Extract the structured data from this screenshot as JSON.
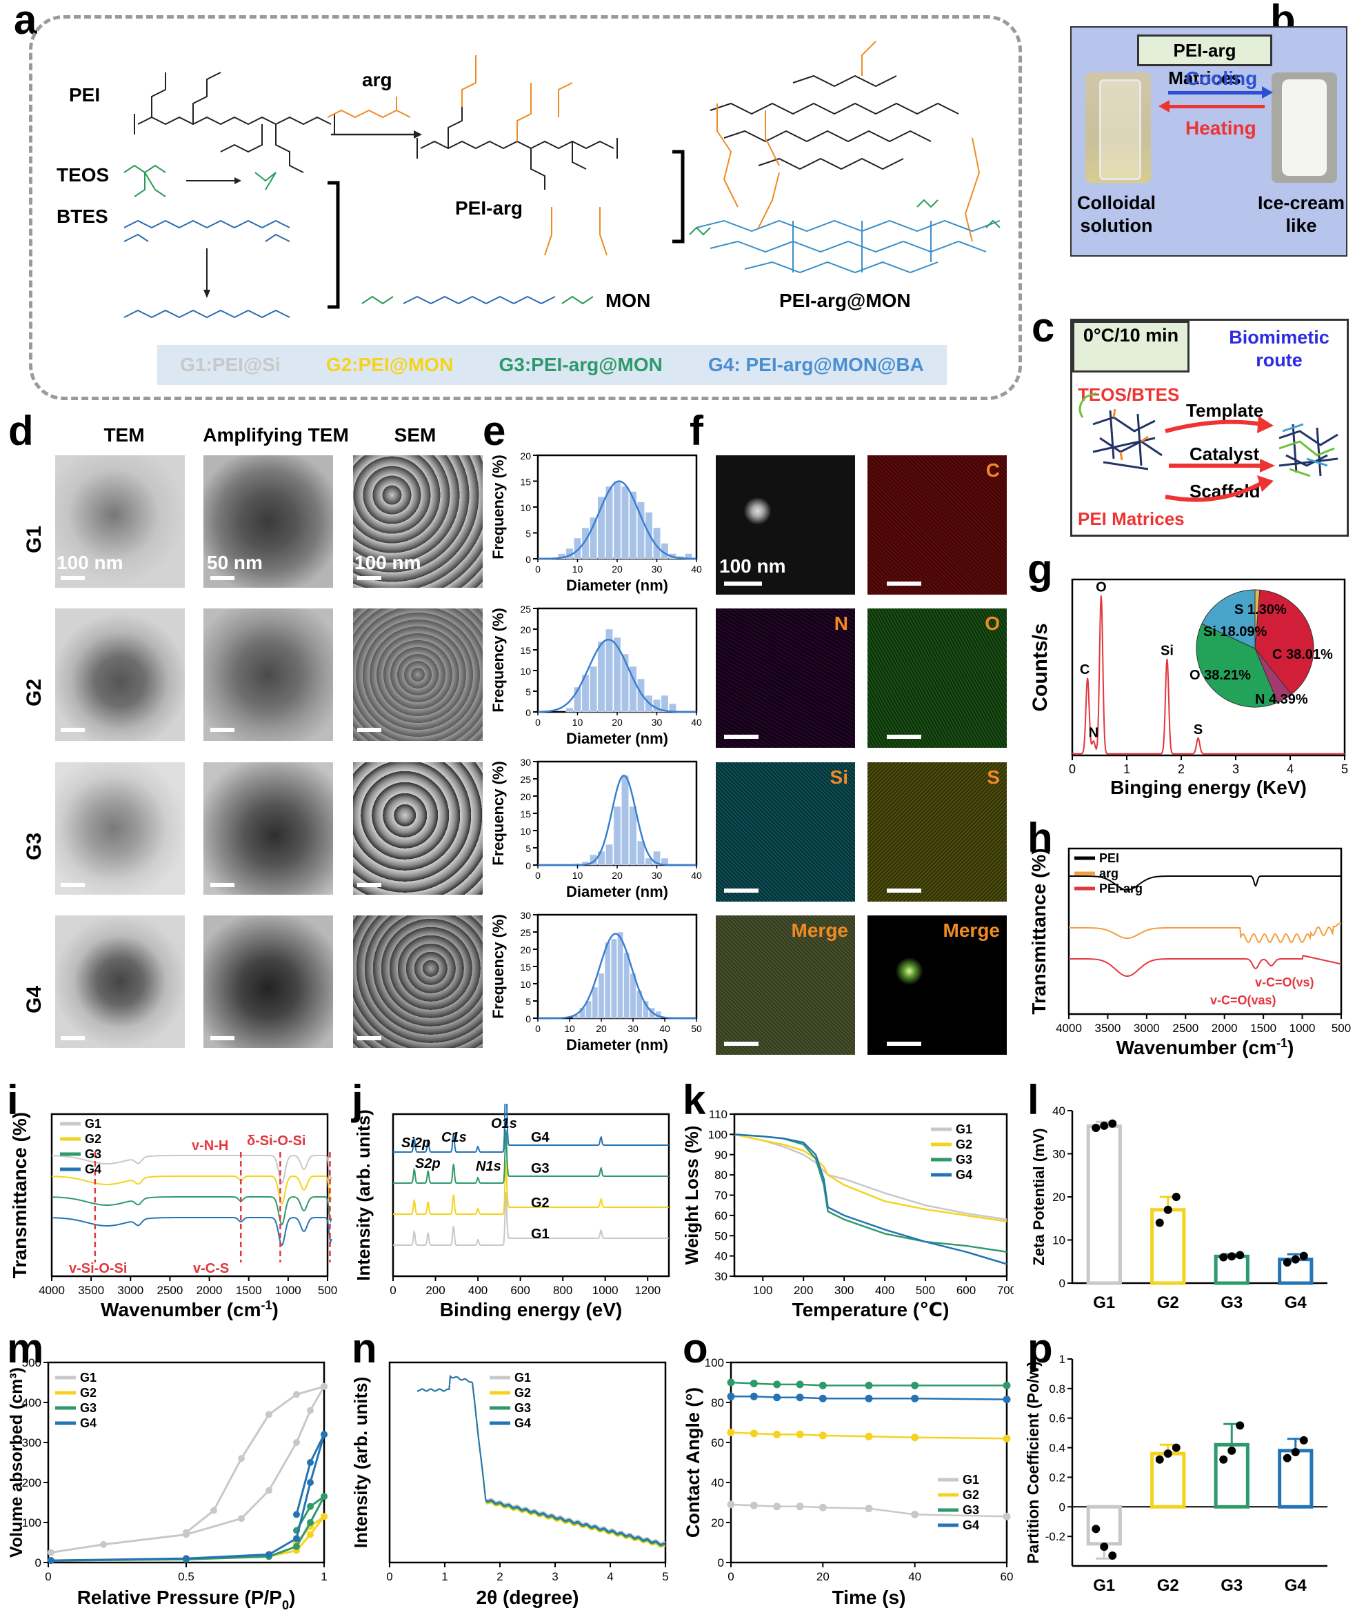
{
  "panels": {
    "a": "a",
    "b": "b",
    "c": "c",
    "d": "d",
    "e": "e",
    "f": "f",
    "g": "g",
    "h": "h",
    "i": "i",
    "j": "j",
    "k": "k",
    "l": "l",
    "m": "m",
    "n": "n",
    "o": "o",
    "p": "p"
  },
  "scheme_a": {
    "pei": "PEI",
    "arg": "arg",
    "teos": "TEOS",
    "btes": "BTES",
    "pei_arg": "PEI-arg",
    "mon": "MON",
    "pei_arg_mon": "PEI-arg@MON",
    "legend": [
      {
        "text": "G1:PEI@Si",
        "color": "#c8c8c8"
      },
      {
        "text": "G2:PEI@MON",
        "color": "#f5d31c"
      },
      {
        "text": "G3:PEI-arg@MON",
        "color": "#2e9a6b"
      },
      {
        "text": "G4: PEI-arg@MON@BA",
        "color": "#4a8fd1"
      }
    ]
  },
  "panel_b": {
    "title": "PEI-arg Matrices",
    "cooling": "Cooling",
    "heating": "Heating",
    "left_caption": "Colloidal solution",
    "right_caption": "Ice-cream like"
  },
  "panel_c": {
    "box": "0°C/10 min",
    "route": "Biomimetic route",
    "teos_btes": "TEOS/BTES",
    "template": "Template",
    "catalyst": "Catalyst",
    "scaffold": "Scaffold",
    "pei_matrices": "PEI Matrices"
  },
  "panel_d": {
    "col_tem": "TEM",
    "col_amp": "Amplifying TEM",
    "col_sem": "SEM",
    "rows": [
      "G1",
      "G2",
      "G3",
      "G4"
    ],
    "sb_tem": "100 nm",
    "sb_amp": "50 nm",
    "sb_sem": "100 nm"
  },
  "panel_e": {
    "ylabel": "Frequency (%)",
    "xlabel": "Diameter (nm)",
    "xticks": [
      "0",
      "10",
      "20",
      "30",
      "40"
    ]
  },
  "panel_f": {
    "labels": [
      "C",
      "N",
      "O",
      "Si",
      "S",
      "Merge",
      "Merge"
    ],
    "sb": "100 nm"
  },
  "chart_data": [
    {
      "id": "e-G1",
      "type": "bar",
      "xlabel": "Diameter (nm)",
      "ylabel": "Frequency (%)",
      "gaussian_mean": 20.5,
      "gaussian_peak": 15,
      "ylim": [
        0,
        20
      ],
      "yticks": [
        0,
        5,
        10,
        15,
        20
      ],
      "xlim": [
        0,
        40
      ],
      "bins": [
        6,
        8,
        10,
        12,
        14,
        16,
        18,
        20,
        22,
        24,
        26,
        28,
        30,
        32,
        34,
        36,
        38
      ],
      "values": [
        1,
        2,
        4,
        6,
        8,
        12,
        14,
        15,
        14,
        13,
        11,
        9,
        6,
        3,
        1,
        0.5,
        1
      ]
    },
    {
      "id": "e-G2",
      "type": "bar",
      "xlabel": "Diameter (nm)",
      "ylabel": "Frequency (%)",
      "gaussian_mean": 17.8,
      "gaussian_peak": 17.5,
      "ylim": [
        0,
        25
      ],
      "yticks": [
        0,
        5,
        10,
        15,
        20,
        25
      ],
      "xlim": [
        0,
        40
      ],
      "bins": [
        8,
        10,
        12,
        14,
        16,
        18,
        20,
        22,
        24,
        26,
        28,
        30,
        32,
        34
      ],
      "values": [
        1,
        6,
        9,
        11,
        17,
        20,
        18,
        14,
        11,
        8,
        4,
        3,
        4,
        2
      ]
    },
    {
      "id": "e-G3",
      "type": "bar",
      "xlabel": "Diameter (nm)",
      "ylabel": "Frequency (%)",
      "gaussian_mean": 21.7,
      "gaussian_peak": 26,
      "ylim": [
        0,
        30
      ],
      "yticks": [
        0,
        5,
        10,
        15,
        20,
        25,
        30
      ],
      "xlim": [
        0,
        40
      ],
      "bins": [
        10,
        12,
        14,
        16,
        18,
        20,
        22,
        24,
        26,
        28,
        30,
        32
      ],
      "values": [
        0.5,
        1,
        3,
        4,
        6,
        17,
        26,
        17,
        7,
        2,
        4,
        2
      ]
    },
    {
      "id": "e-G4",
      "type": "bar",
      "xlabel": "Diameter (nm)",
      "ylabel": "Frequency (%)",
      "gaussian_mean": 24.5,
      "gaussian_peak": 24.5,
      "ylim": [
        0,
        30
      ],
      "yticks": [
        0,
        5,
        10,
        15,
        20,
        25,
        30
      ],
      "xlim": [
        0,
        50
      ],
      "bins": [
        12,
        14,
        16,
        18,
        20,
        22,
        24,
        26,
        28,
        30,
        32,
        34,
        36,
        38
      ],
      "values": [
        1,
        3,
        5,
        9,
        13,
        22,
        23,
        25,
        19,
        13,
        8,
        5,
        3,
        2
      ]
    },
    {
      "id": "g",
      "type": "line",
      "title": "",
      "xlabel": "Binging energy (KeV)",
      "ylabel": "Counts/s",
      "xlim": [
        0,
        5
      ],
      "xticks": [
        0,
        1,
        2,
        3,
        4,
        5
      ],
      "peaks": [
        {
          "label": "C",
          "x": 0.28,
          "h": 0.48
        },
        {
          "label": "N",
          "x": 0.39,
          "h": 0.08
        },
        {
          "label": "O",
          "x": 0.53,
          "h": 1.0
        },
        {
          "label": "Si",
          "x": 1.74,
          "h": 0.6
        },
        {
          "label": "S",
          "x": 2.31,
          "h": 0.1
        }
      ],
      "pie": [
        {
          "label": "C 38.01%",
          "value": 38.01,
          "color": "#d11f3a"
        },
        {
          "label": "N 4.39%",
          "value": 4.39,
          "color": "#a23a6e"
        },
        {
          "label": "O 38.21%",
          "value": 38.21,
          "color": "#23a35a"
        },
        {
          "label": "Si 18.09%",
          "value": 18.09,
          "color": "#4aa3c8"
        },
        {
          "label": "S 1.30%",
          "value": 1.3,
          "color": "#e8b94a"
        }
      ]
    },
    {
      "id": "h",
      "type": "line",
      "xlabel": "Wavenumber (cm-1)",
      "ylabel": "Transmittance (%)",
      "xlim": [
        4000,
        500
      ],
      "xticks": [
        4000,
        3500,
        3000,
        2500,
        2000,
        1500,
        1000,
        500
      ],
      "series": [
        {
          "name": "PEI",
          "color": "#000000"
        },
        {
          "name": "arg",
          "color": "#f59d3c"
        },
        {
          "name": "PEI-arg",
          "color": "#e2373d"
        }
      ],
      "annotations": [
        "v-C=O(vs)",
        "v-C=O(vas)"
      ]
    },
    {
      "id": "i",
      "type": "line",
      "xlabel": "Wavenumber (cm",
      "ylabel": "Transmittance (%)",
      "xlim": [
        4000,
        500
      ],
      "xticks": [
        4000,
        3500,
        3000,
        2500,
        2000,
        1500,
        1000,
        500
      ],
      "series": [
        {
          "name": "G1",
          "color": "#c8c8c8"
        },
        {
          "name": "G2",
          "color": "#f5d31c"
        },
        {
          "name": "G3",
          "color": "#2e9a6b"
        },
        {
          "name": "G4",
          "color": "#2474b5"
        }
      ],
      "annotations": [
        "v-N-H",
        "δ-Si-O-Si",
        "v-Si-O-Si",
        "v-C-S"
      ]
    },
    {
      "id": "j",
      "type": "line",
      "xlabel": "Binding energy (eV)",
      "ylabel": "Intensity (arb. units)",
      "xlim": [
        0,
        1300
      ],
      "xticks": [
        0,
        200,
        400,
        600,
        800,
        1000,
        1200
      ],
      "series": [
        {
          "name": "G1",
          "color": "#c8c8c8"
        },
        {
          "name": "G2",
          "color": "#f5d31c"
        },
        {
          "name": "G3",
          "color": "#2e9a6b"
        },
        {
          "name": "G4",
          "color": "#2474b5"
        }
      ],
      "annotations": [
        "Si2p",
        "S2p",
        "C1s",
        "N1s",
        "O1s"
      ]
    },
    {
      "id": "k",
      "type": "line",
      "xlabel": "Temperature (℃)",
      "ylabel": "Weight Loss (%)",
      "xlim": [
        30,
        700
      ],
      "ylim": [
        30,
        110
      ],
      "xticks": [
        100,
        200,
        300,
        400,
        500,
        600,
        700
      ],
      "yticks": [
        30,
        40,
        50,
        60,
        70,
        80,
        90,
        100,
        110
      ],
      "x": [
        30,
        100,
        150,
        200,
        230,
        250,
        260,
        300,
        400,
        500,
        600,
        700
      ],
      "series": [
        {
          "name": "G1",
          "color": "#c8c8c8",
          "values": [
            100,
            97,
            94,
            90,
            86,
            82,
            80,
            78,
            71,
            65,
            61,
            58
          ]
        },
        {
          "name": "G2",
          "color": "#f5d31c",
          "values": [
            100,
            97,
            95,
            92,
            88,
            84,
            80,
            75,
            67,
            63,
            60,
            57
          ]
        },
        {
          "name": "G3",
          "color": "#2e9a6b",
          "values": [
            100,
            99,
            98,
            95,
            88,
            75,
            62,
            58,
            51,
            47,
            45,
            42
          ]
        },
        {
          "name": "G4",
          "color": "#2474b5",
          "values": [
            100,
            99,
            98,
            96,
            90,
            78,
            64,
            60,
            53,
            47,
            42,
            36
          ]
        }
      ]
    },
    {
      "id": "l",
      "type": "bar",
      "xlabel": "",
      "ylabel": "Zeta Potential (mV)",
      "categories": [
        "G1",
        "G2",
        "G3",
        "G4"
      ],
      "values": [
        36.4,
        17,
        6.2,
        5.5
      ],
      "errors": [
        1,
        3,
        0.5,
        1.2
      ],
      "ylim": [
        0,
        40
      ],
      "yticks": [
        0,
        10,
        20,
        30,
        40
      ],
      "points": [
        [
          36,
          36.5,
          37
        ],
        [
          14,
          17,
          20
        ],
        [
          6,
          6.2,
          6.5
        ],
        [
          4.8,
          5.5,
          6.3
        ]
      ],
      "colors": [
        "#c8c8c8",
        "#f5d31c",
        "#2e9a6b",
        "#2474b5"
      ]
    },
    {
      "id": "m",
      "type": "line",
      "xlabel": "Relative Pressure (P/P0)",
      "ylabel": "Volume absorbed (cm³)",
      "xlim": [
        0,
        1
      ],
      "ylim": [
        0,
        500
      ],
      "xticks": [
        0.0,
        0.5,
        1.0
      ],
      "yticks": [
        0,
        100,
        200,
        300,
        400,
        500
      ],
      "series": [
        {
          "name": "G1",
          "color": "#c8c8c8"
        },
        {
          "name": "G2",
          "color": "#f5d31c"
        },
        {
          "name": "G3",
          "color": "#2e9a6b"
        },
        {
          "name": "G4",
          "color": "#2474b5"
        }
      ]
    },
    {
      "id": "n",
      "type": "line",
      "xlabel": "2θ (degree)",
      "ylabel": "Intensity (arb. units)",
      "xlim": [
        0,
        5
      ],
      "xticks": [
        0,
        1,
        2,
        3,
        4,
        5
      ],
      "series": [
        {
          "name": "G1",
          "color": "#c8c8c8"
        },
        {
          "name": "G2",
          "color": "#f5d31c"
        },
        {
          "name": "G3",
          "color": "#2e9a6b"
        },
        {
          "name": "G4",
          "color": "#2474b5"
        }
      ]
    },
    {
      "id": "o",
      "type": "line",
      "xlabel": "Time (s)",
      "ylabel": "Contact Angle (°)",
      "xlim": [
        0,
        60
      ],
      "ylim": [
        0,
        100
      ],
      "xticks": [
        0,
        20,
        40,
        60
      ],
      "yticks": [
        0,
        20,
        40,
        60,
        80,
        100
      ],
      "x": [
        0,
        5,
        10,
        15,
        20,
        30,
        40,
        60
      ],
      "series": [
        {
          "name": "G1",
          "color": "#c8c8c8",
          "values": [
            29,
            28.5,
            28,
            28,
            27.5,
            27,
            24,
            23
          ]
        },
        {
          "name": "G2",
          "color": "#f5d31c",
          "values": [
            65,
            64.5,
            64,
            64,
            63.5,
            63,
            62.5,
            62
          ]
        },
        {
          "name": "G3",
          "color": "#2e9a6b",
          "values": [
            90,
            89.5,
            89,
            89,
            88.5,
            88.5,
            88.5,
            88.5
          ]
        },
        {
          "name": "G4",
          "color": "#2474b5",
          "values": [
            83,
            83,
            82.5,
            82.5,
            82,
            82,
            82,
            81.5
          ]
        }
      ]
    },
    {
      "id": "p",
      "type": "bar",
      "xlabel": "",
      "ylabel": "Partition Coefficient (Po/w)",
      "categories": [
        "G1",
        "G2",
        "G3",
        "G4"
      ],
      "values": [
        -0.25,
        0.36,
        0.42,
        0.38
      ],
      "errors": [
        0.1,
        0.06,
        0.14,
        0.08
      ],
      "ylim": [
        -0.4,
        1.0
      ],
      "yticks": [
        -0.2,
        0.0,
        0.2,
        0.4,
        0.6,
        0.8,
        1.0
      ],
      "points": [
        [
          -0.15,
          -0.27,
          -0.33
        ],
        [
          0.32,
          0.36,
          0.4
        ],
        [
          0.32,
          0.38,
          0.55
        ],
        [
          0.33,
          0.37,
          0.45
        ]
      ],
      "colors": [
        "#c8c8c8",
        "#f5d31c",
        "#2e9a6b",
        "#2474b5"
      ]
    }
  ],
  "axis_text": {
    "h_title_sub": "-1",
    "i_xlabel_tail": "-1",
    "m_sub": "0"
  }
}
